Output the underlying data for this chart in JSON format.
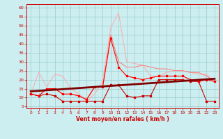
{
  "x": [
    0,
    1,
    2,
    3,
    4,
    5,
    6,
    7,
    8,
    9,
    10,
    11,
    12,
    13,
    14,
    15,
    16,
    17,
    18,
    19,
    20,
    21,
    22,
    23
  ],
  "wind_avg": [
    12,
    11,
    15,
    15,
    12,
    12,
    11,
    9,
    16,
    16,
    43,
    27,
    22,
    21,
    20,
    21,
    22,
    22,
    22,
    22,
    20,
    19,
    20,
    19
  ],
  "wind_gust": [
    12,
    24,
    16,
    23,
    22,
    15,
    12,
    8,
    12,
    19,
    49,
    57,
    30,
    29,
    28,
    22,
    22,
    24,
    25,
    25,
    24,
    23,
    23,
    19
  ],
  "wind_min": [
    12,
    11,
    12,
    11,
    8,
    8,
    8,
    8,
    8,
    8,
    17,
    17,
    11,
    10,
    11,
    11,
    20,
    20,
    20,
    20,
    19,
    19,
    8,
    8
  ],
  "wind_high2": [
    12,
    11,
    15,
    15,
    12,
    12,
    11,
    9,
    16,
    16,
    45,
    30,
    27,
    27,
    28,
    27,
    26,
    26,
    25,
    25,
    24,
    24,
    22,
    19
  ],
  "trend_x": [
    0,
    23
  ],
  "trend_y": [
    13.5,
    20.5
  ],
  "color_gust": "#ffaaaa",
  "color_high2": "#ff7777",
  "color_avg": "#ff0000",
  "color_min": "#cc0000",
  "color_trend": "#800000",
  "bg_color": "#cceef0",
  "grid_color": "#99cccc",
  "xlabel": "Vent moyen/en rafales ( km/h )",
  "ylim": [
    4,
    62
  ],
  "xlim": [
    -0.5,
    23.5
  ],
  "yticks": [
    5,
    10,
    15,
    20,
    25,
    30,
    35,
    40,
    45,
    50,
    55,
    60
  ],
  "xticks": [
    0,
    1,
    2,
    3,
    4,
    5,
    6,
    7,
    8,
    9,
    10,
    11,
    12,
    13,
    14,
    15,
    16,
    17,
    18,
    19,
    20,
    21,
    22,
    23
  ]
}
